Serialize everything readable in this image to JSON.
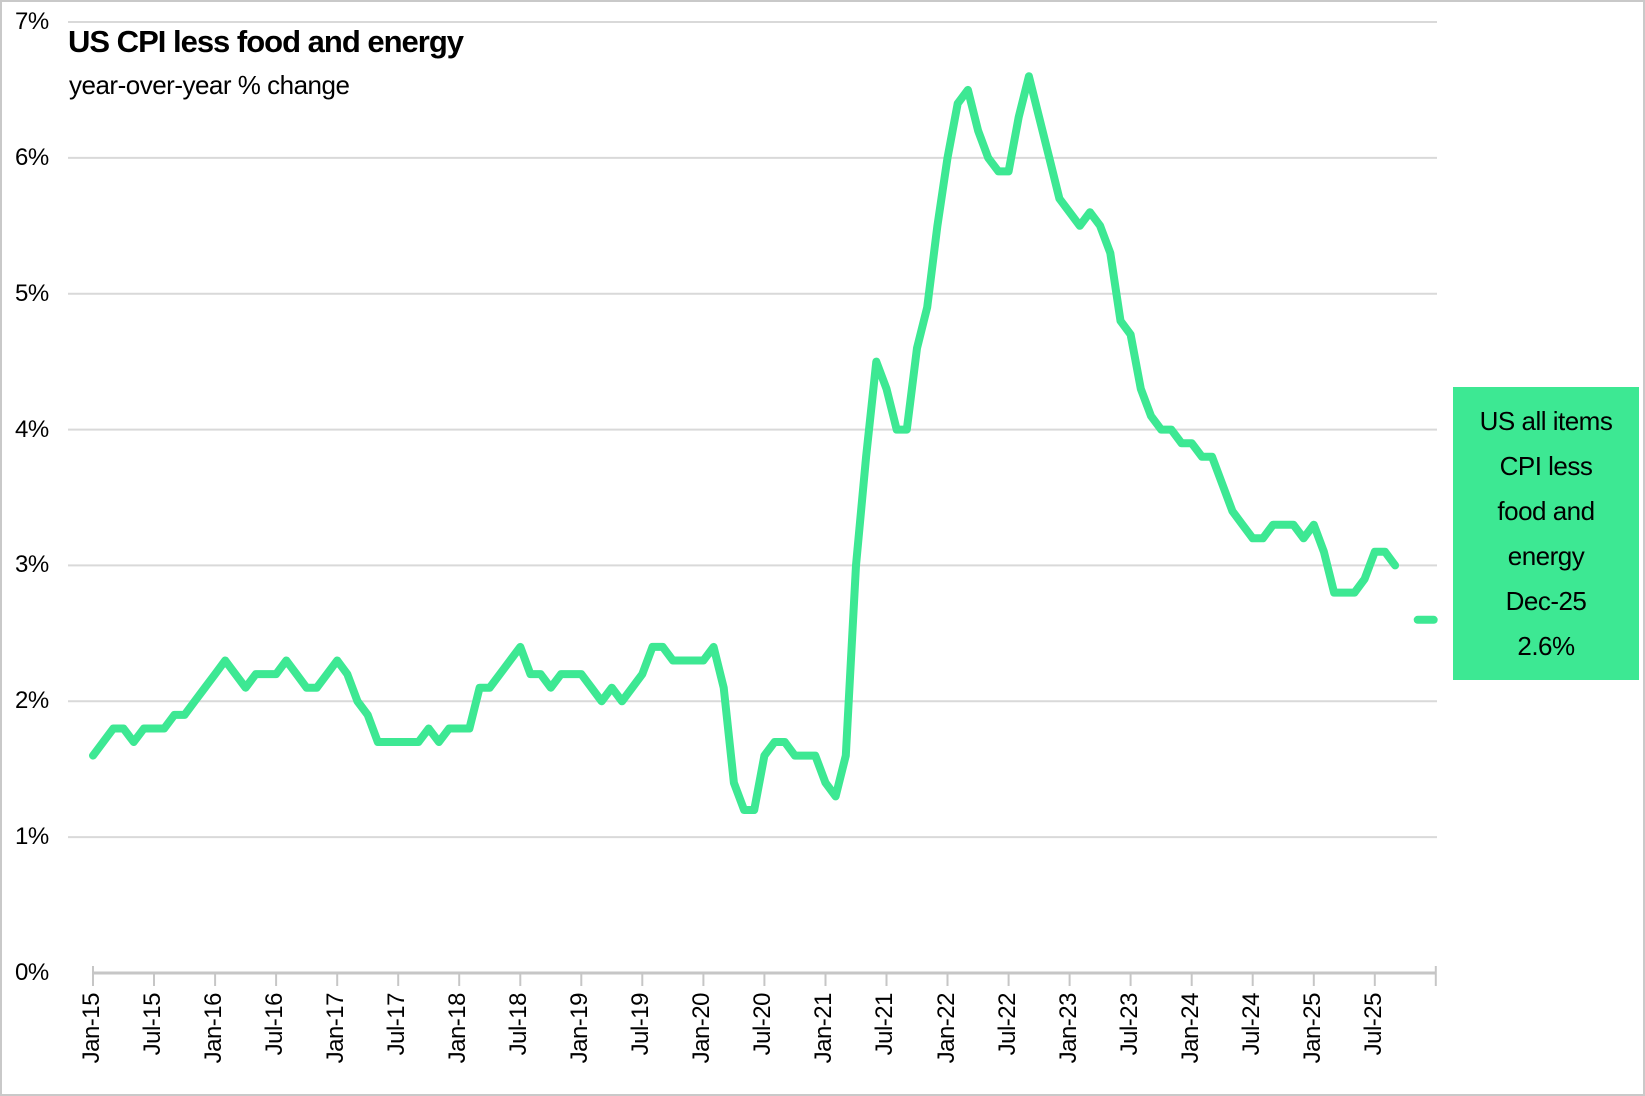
{
  "chart_data": {
    "type": "line",
    "title": "US CPI less food and energy",
    "subtitle": "year-over-year % change",
    "xlabel": "",
    "ylabel": "",
    "ylim": [
      0,
      7
    ],
    "grid": "horizontal",
    "legend_position": "none",
    "y_tick_labels": [
      "0%",
      "1%",
      "2%",
      "3%",
      "4%",
      "5%",
      "6%",
      "7%"
    ],
    "x_tick_labels": [
      "Jan-15",
      "Jul-15",
      "Jan-16",
      "Jul-16",
      "Jan-17",
      "Jul-17",
      "Jan-18",
      "Jul-18",
      "Jan-19",
      "Jul-19",
      "Jan-20",
      "Jul-20",
      "Jan-21",
      "Jul-21",
      "Jan-22",
      "Jul-22",
      "Jan-23",
      "Jul-23",
      "Jan-24",
      "Jul-24",
      "Jan-25",
      "Jul-25"
    ],
    "x_start_month": "Jan-15",
    "x_months_per_point": 1,
    "series": [
      {
        "name": "US all items CPI less food and energy",
        "color": "#3de893",
        "first_month": "Jan-15",
        "last_month": "Sep-25",
        "values": [
          1.6,
          1.7,
          1.8,
          1.8,
          1.7,
          1.8,
          1.8,
          1.8,
          1.9,
          1.9,
          2.0,
          2.1,
          2.2,
          2.3,
          2.2,
          2.1,
          2.2,
          2.2,
          2.2,
          2.3,
          2.2,
          2.1,
          2.1,
          2.2,
          2.3,
          2.2,
          2.0,
          1.9,
          1.7,
          1.7,
          1.7,
          1.7,
          1.7,
          1.8,
          1.7,
          1.8,
          1.8,
          1.8,
          2.1,
          2.1,
          2.2,
          2.3,
          2.4,
          2.2,
          2.2,
          2.1,
          2.2,
          2.2,
          2.2,
          2.1,
          2.0,
          2.1,
          2.0,
          2.1,
          2.2,
          2.4,
          2.4,
          2.3,
          2.3,
          2.3,
          2.3,
          2.4,
          2.1,
          1.4,
          1.2,
          1.2,
          1.6,
          1.7,
          1.7,
          1.6,
          1.6,
          1.6,
          1.4,
          1.3,
          1.6,
          3.0,
          3.8,
          4.5,
          4.3,
          4.0,
          4.0,
          4.6,
          4.9,
          5.5,
          6.0,
          6.4,
          6.5,
          6.2,
          6.0,
          5.9,
          5.9,
          6.3,
          6.6,
          6.3,
          6.0,
          5.7,
          5.6,
          5.5,
          5.6,
          5.5,
          5.3,
          4.8,
          4.7,
          4.3,
          4.1,
          4.0,
          4.0,
          3.9,
          3.9,
          3.8,
          3.8,
          3.6,
          3.4,
          3.3,
          3.2,
          3.2,
          3.3,
          3.3,
          3.3,
          3.2,
          3.3,
          3.1,
          2.8,
          2.8,
          2.8,
          2.9,
          3.1,
          3.1,
          3.0
        ]
      }
    ],
    "final_point": {
      "label": "Dec-25",
      "value": 2.6,
      "months_after_start": 131,
      "marker": "dash",
      "color": "#3de893"
    },
    "annotation": {
      "text": "US all items CPI less food and energy Dec-25 2.6%",
      "lines": [
        "US all items",
        "CPI less",
        "food and",
        "energy",
        "Dec-25",
        "2.6%"
      ],
      "bg_color": "#3de893",
      "text_color": "#000000"
    },
    "colors": {
      "line": "#3de893",
      "gridline": "#d9d9d9",
      "axis": "#c6c6c6",
      "frame_border": "#c9c9c9",
      "background": "#ffffff",
      "text": "#000000"
    }
  }
}
